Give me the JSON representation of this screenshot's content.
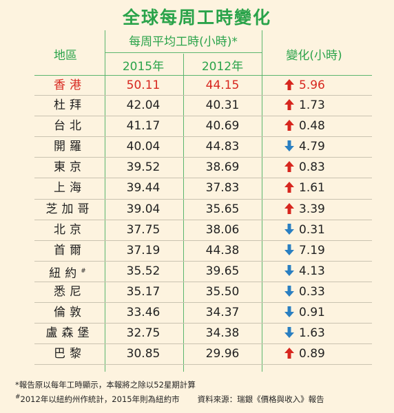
{
  "title": "全球每周工時變化",
  "headers": {
    "city": "地區",
    "avg_hours": "每周平均工時(小時)*",
    "year1": "2015年",
    "year2": "2012年",
    "change": "變化(小時)"
  },
  "colors": {
    "up": "#d7261e",
    "down": "#2a7fc1",
    "accent": "#2aa34a",
    "highlight": "#d7261e"
  },
  "rows": [
    {
      "city": "香港",
      "y2015": "50.11",
      "y2012": "44.15",
      "dir": "up-arrow-icon",
      "change": "5.96"
    },
    {
      "city": "杜拜",
      "y2015": "42.04",
      "y2012": "40.31",
      "dir": "up-arrow-icon",
      "change": "1.73"
    },
    {
      "city": "台北",
      "y2015": "41.17",
      "y2012": "40.69",
      "dir": "up-arrow-icon",
      "change": "0.48"
    },
    {
      "city": "開羅",
      "y2015": "40.04",
      "y2012": "44.83",
      "dir": "down-arrow-icon",
      "change": "4.79"
    },
    {
      "city": "東京",
      "y2015": "39.52",
      "y2012": "38.69",
      "dir": "up-arrow-icon",
      "change": "0.83"
    },
    {
      "city": "上海",
      "y2015": "39.44",
      "y2012": "37.83",
      "dir": "up-arrow-icon",
      "change": "1.61"
    },
    {
      "city": "芝加哥",
      "y2015": "39.04",
      "y2012": "35.65",
      "dir": "up-arrow-icon",
      "change": "3.39"
    },
    {
      "city": "北京",
      "y2015": "37.75",
      "y2012": "38.06",
      "dir": "down-arrow-icon",
      "change": "0.31"
    },
    {
      "city": "首爾",
      "y2015": "37.19",
      "y2012": "44.38",
      "dir": "down-arrow-icon",
      "change": "7.19"
    },
    {
      "city": "紐約",
      "city_mark": "#",
      "y2015": "35.52",
      "y2012": "39.65",
      "dir": "down-arrow-icon",
      "change": "4.13"
    },
    {
      "city": "悉尼",
      "y2015": "35.17",
      "y2012": "35.50",
      "dir": "down-arrow-icon",
      "change": "0.33"
    },
    {
      "city": "倫敦",
      "y2015": "33.46",
      "y2012": "34.37",
      "dir": "down-arrow-icon",
      "change": "0.91"
    },
    {
      "city": "盧森堡",
      "y2015": "32.75",
      "y2012": "34.38",
      "dir": "down-arrow-icon",
      "change": "1.63"
    },
    {
      "city": "巴黎",
      "y2015": "30.85",
      "y2012": "29.96",
      "dir": "up-arrow-icon",
      "change": "0.89"
    }
  ],
  "footnotes": {
    "note1": "*報告原以每年工時顯示，本報將之除以52星期計算",
    "note2_mark": "#",
    "note2": "2012年以紐約州作統計，2015年則為紐約市",
    "source": "資料來源：瑞銀《價格與收入》報告"
  }
}
